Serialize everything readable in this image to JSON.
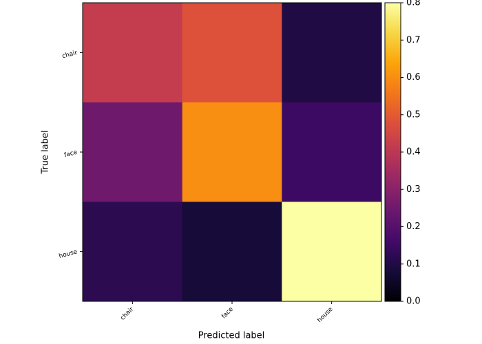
{
  "chart_data": {
    "type": "heatmap",
    "x_categories": [
      "chair",
      "face",
      "house"
    ],
    "y_categories": [
      "chair",
      "face",
      "house"
    ],
    "values": [
      [
        0.42,
        0.48,
        0.1
      ],
      [
        0.25,
        0.6,
        0.15
      ],
      [
        0.12,
        0.08,
        0.8
      ]
    ],
    "xlabel": "Predicted label",
    "ylabel": "True label",
    "colormap": "inferno",
    "clim": [
      0,
      0.8
    ],
    "cbar_ticks": [
      {
        "value": 0,
        "label": "0.0"
      },
      0.1,
      0.2,
      0.3,
      0.4,
      0.5,
      0.6,
      0.7,
      0.8
    ]
  }
}
